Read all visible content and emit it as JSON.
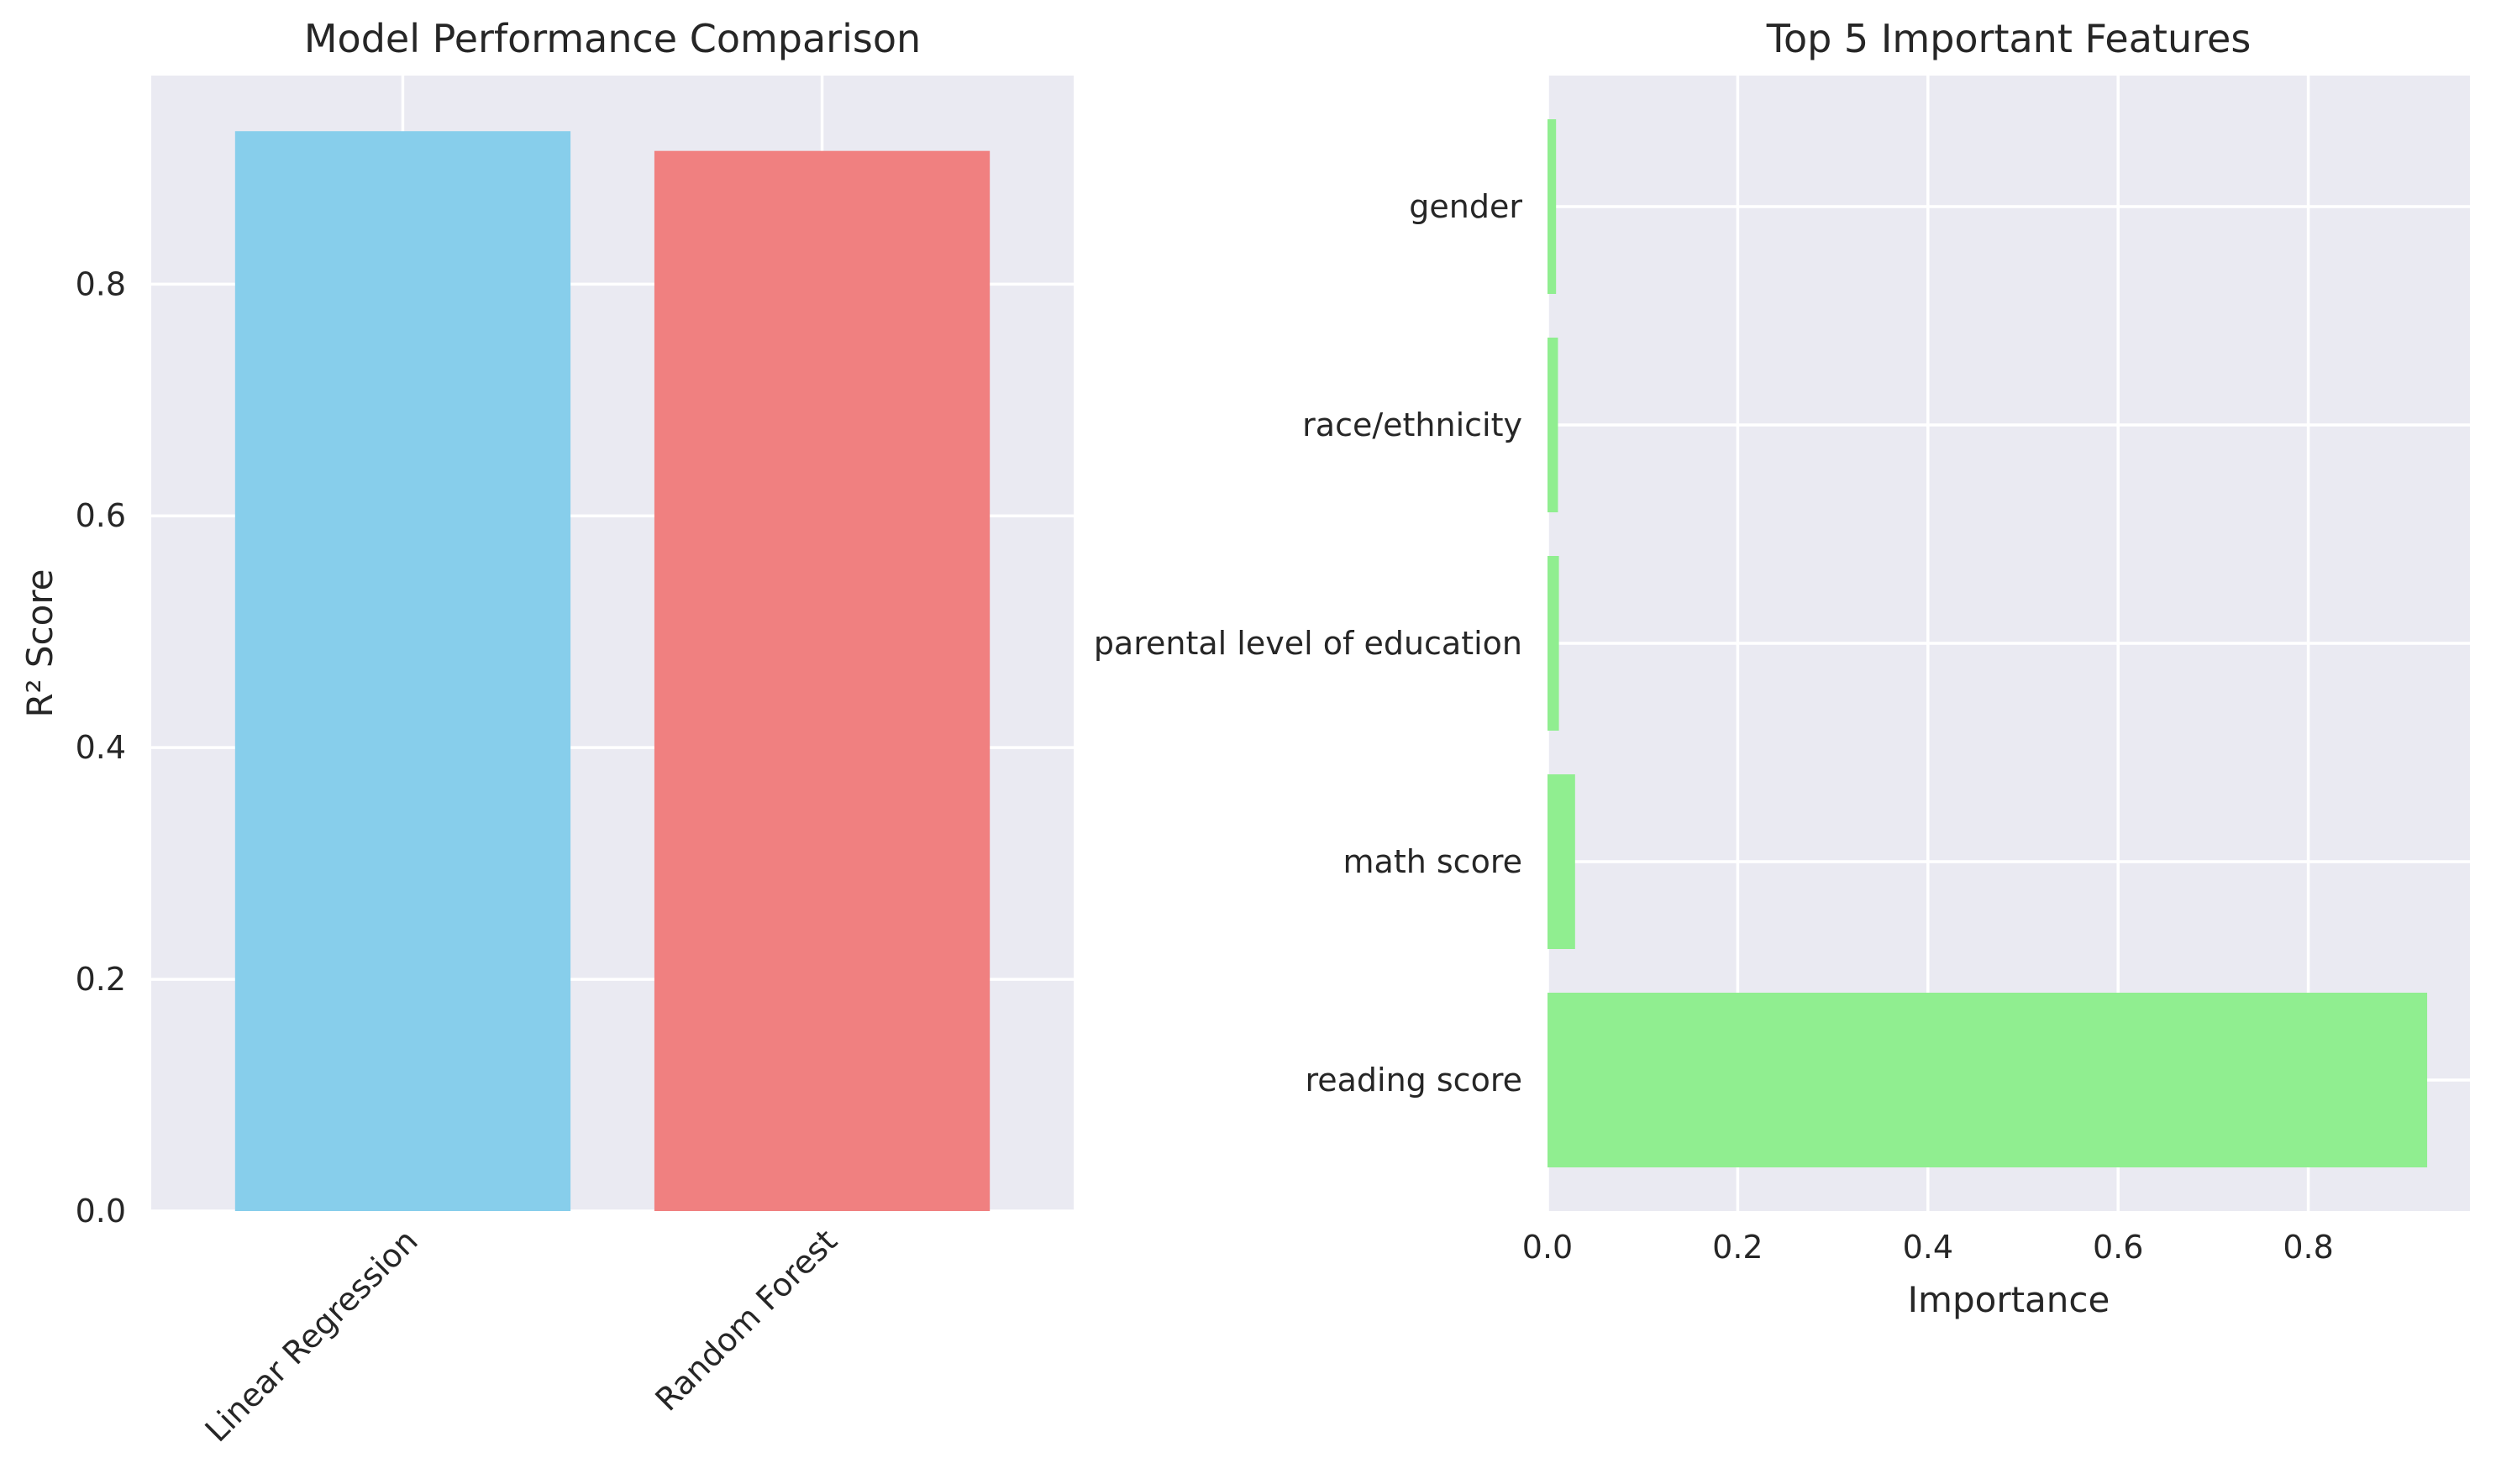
{
  "chart_data": [
    {
      "type": "bar",
      "title": "Model Performance Comparison",
      "xlabel": "",
      "ylabel": "R² Score",
      "categories": [
        "Linear Regression",
        "Random Forest"
      ],
      "values": [
        0.932,
        0.915
      ],
      "colors": [
        "#87ceeb",
        "#f08080"
      ],
      "ylim": [
        0,
        0.98
      ],
      "yticks": [
        0.0,
        0.2,
        0.4,
        0.6,
        0.8
      ],
      "ytick_labels": [
        "0.0",
        "0.2",
        "0.4",
        "0.6",
        "0.8"
      ],
      "grid": true
    },
    {
      "type": "bar",
      "orientation": "horizontal",
      "title": "Top 5 Important Features",
      "xlabel": "Importance",
      "ylabel": "",
      "categories": [
        "reading score",
        "math score",
        "parental level of education",
        "race/ethnicity",
        "gender"
      ],
      "values": [
        0.925,
        0.029,
        0.012,
        0.011,
        0.009
      ],
      "color": "#90ee90",
      "xlim": [
        0,
        0.97
      ],
      "xticks": [
        0.0,
        0.2,
        0.4,
        0.6,
        0.8
      ],
      "xtick_labels": [
        "0.0",
        "0.2",
        "0.4",
        "0.6",
        "0.8"
      ],
      "grid": true
    }
  ]
}
